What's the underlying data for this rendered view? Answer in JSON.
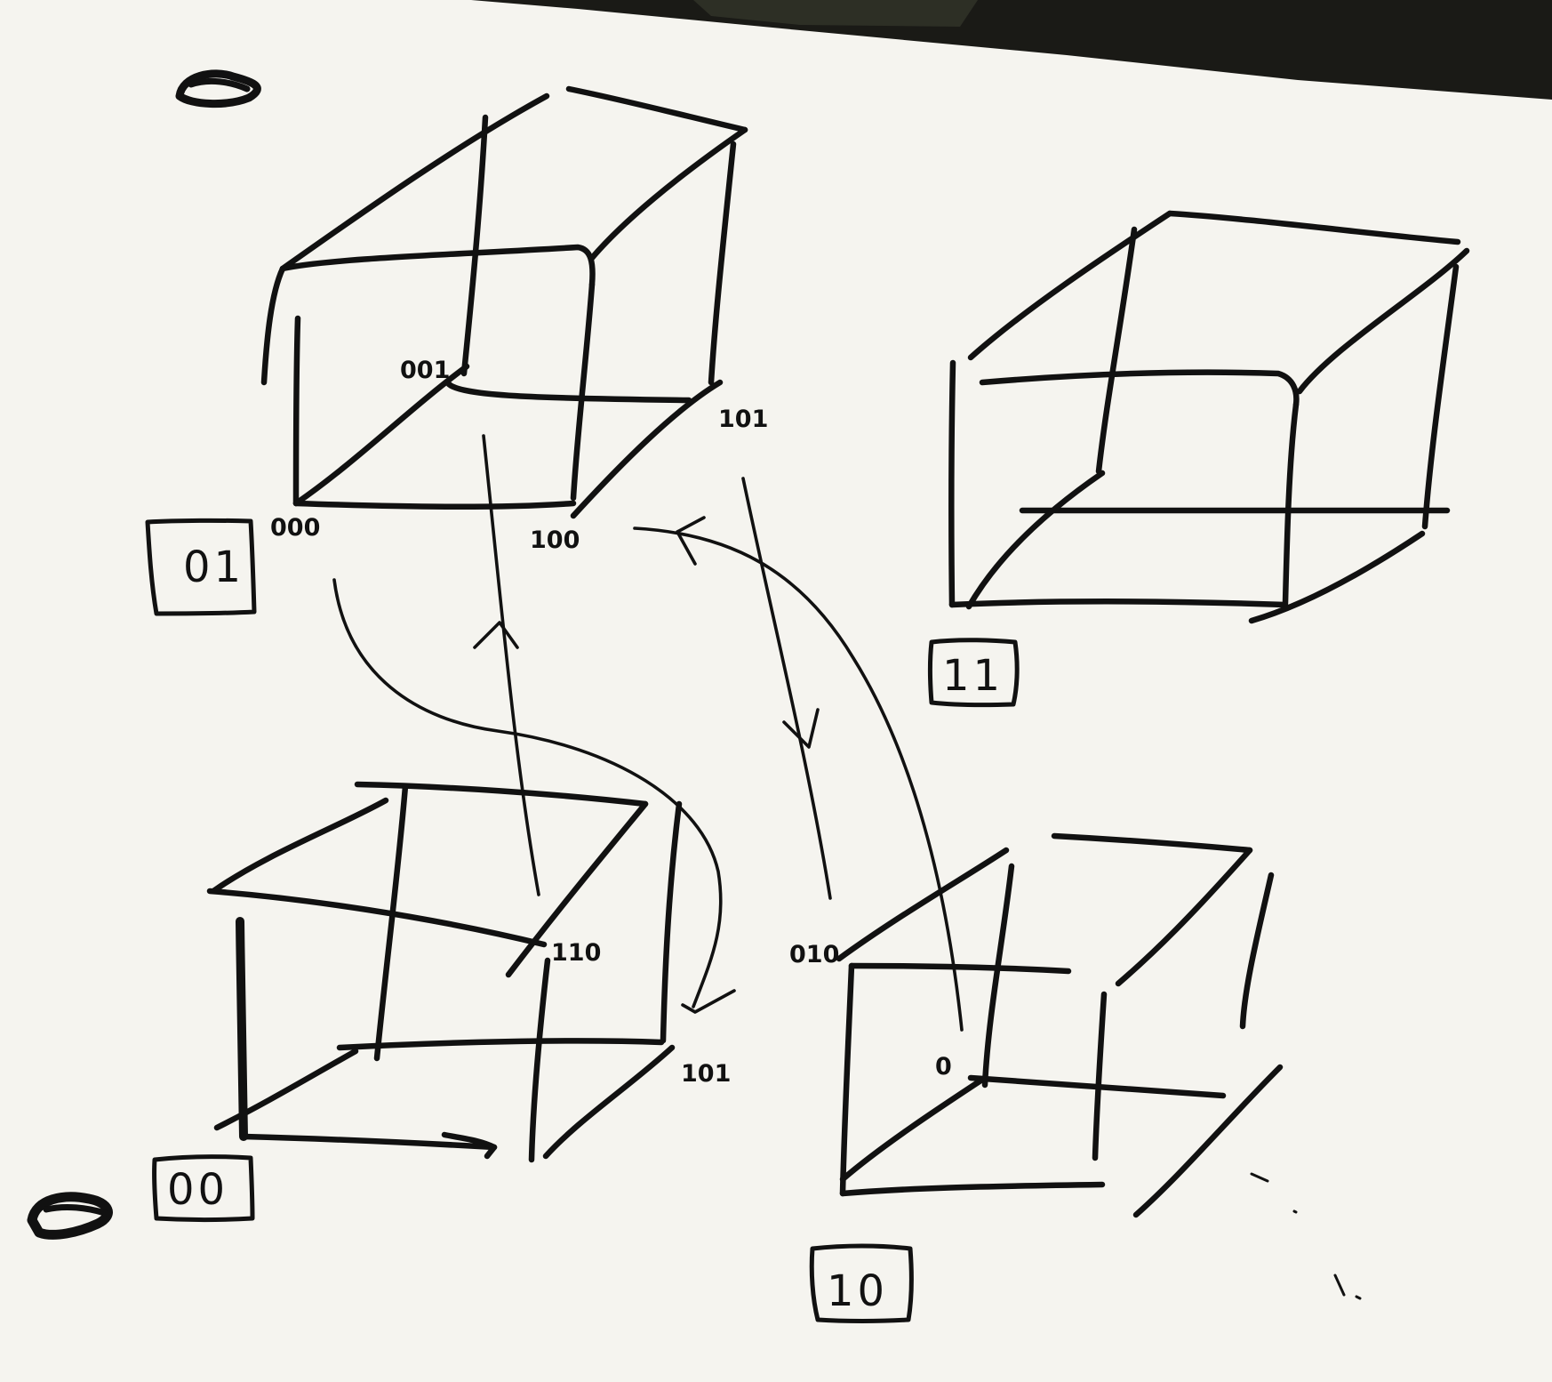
{
  "diagram": {
    "cubes": [
      {
        "id": "cube-01",
        "label": "01",
        "vertex_labels": [
          "001",
          "101",
          "000",
          "100"
        ]
      },
      {
        "id": "cube-11",
        "label": "11",
        "vertex_labels": []
      },
      {
        "id": "cube-00",
        "label": "00",
        "vertex_labels": [
          "110",
          "101"
        ]
      },
      {
        "id": "cube-10",
        "label": "10",
        "vertex_labels": [
          "010",
          "0"
        ]
      }
    ],
    "colors": {
      "paper": "#f5f4ef",
      "ink": "#111111",
      "top_band": "#1a1a16"
    }
  }
}
